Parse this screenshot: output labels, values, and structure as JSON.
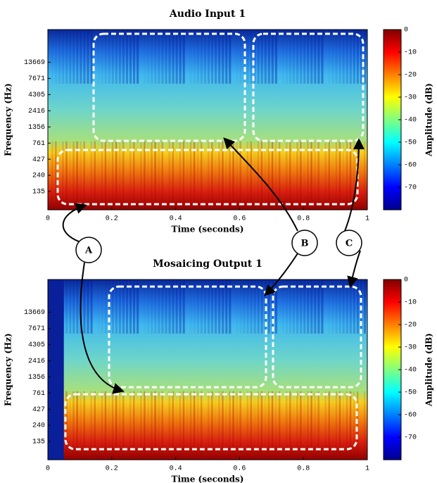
{
  "chart_data": [
    {
      "type": "spectrogram",
      "title": "Audio Input 1",
      "x_label": "Time (seconds)",
      "y_label": "Frequency (Hz)",
      "xlim": [
        0,
        1
      ],
      "xticks": [
        0,
        0.2,
        0.4,
        0.6,
        0.8,
        1
      ],
      "ylim": [
        70,
        44000
      ],
      "y_scale": "log",
      "yticks": [
        135,
        240,
        427,
        761,
        1356,
        2416,
        4305,
        7671,
        13669
      ],
      "colorbar": {
        "label": "Amplitude (dB)",
        "lim": [
          -80,
          0
        ],
        "ticks": [
          0,
          -10,
          -20,
          -30,
          -40,
          -50,
          -60,
          -70
        ]
      },
      "silence_until": 0
    },
    {
      "type": "spectrogram",
      "title": "Mosaicing Output 1",
      "x_label": "Time (seconds)",
      "y_label": "Frequency (Hz)",
      "xlim": [
        0,
        1
      ],
      "xticks": [
        0,
        0.2,
        0.4,
        0.6,
        0.8,
        1
      ],
      "ylim": [
        70,
        44000
      ],
      "y_scale": "log",
      "yticks": [
        135,
        240,
        427,
        761,
        1356,
        2416,
        4305,
        7671,
        13669
      ],
      "colorbar": {
        "label": "Amplitude (dB)",
        "lim": [
          -80,
          0
        ],
        "ticks": [
          0,
          -10,
          -20,
          -30,
          -40,
          -50,
          -60,
          -70
        ]
      },
      "silence_until": 0.05
    }
  ],
  "annotations": [
    "A",
    "B",
    "C"
  ]
}
